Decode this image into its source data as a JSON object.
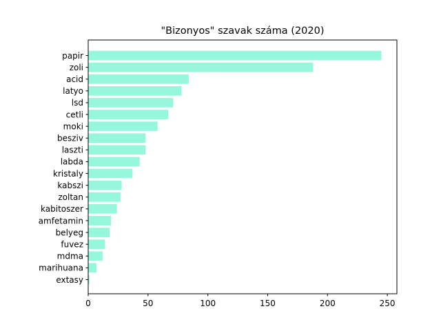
{
  "chart_data": {
    "type": "bar",
    "orientation": "horizontal",
    "title": "\"Bizonyos\" szavak száma (2020)",
    "xlabel": "",
    "ylabel": "",
    "categories": [
      "papir",
      "zoli",
      "acid",
      "latyo",
      "lsd",
      "cetli",
      "moki",
      "besziv",
      "laszti",
      "labda",
      "kristaly",
      "kabszi",
      "zoltan",
      "kabitoszer",
      "amfetamin",
      "belyeg",
      "fuvez",
      "mdma",
      "marihuana",
      "extasy"
    ],
    "values": [
      245,
      188,
      84,
      78,
      71,
      67,
      58,
      48,
      48,
      43,
      37,
      28,
      27,
      24,
      19,
      18,
      14,
      12,
      7,
      1
    ],
    "xlim": [
      0,
      258
    ],
    "xticks": [
      0,
      50,
      100,
      150,
      200,
      250
    ],
    "bar_color": "#95f7dc",
    "grid": false
  }
}
